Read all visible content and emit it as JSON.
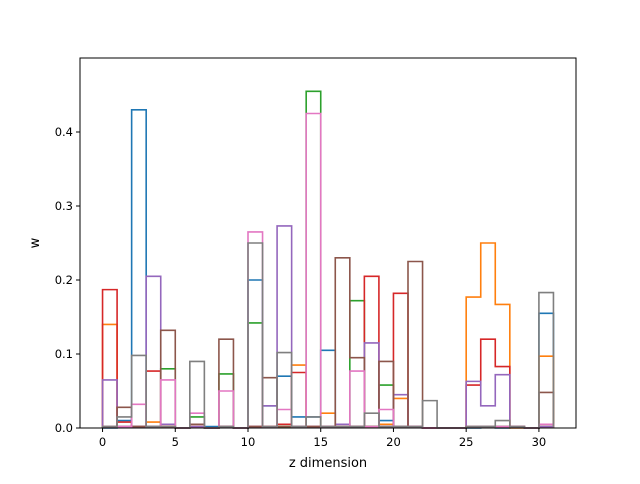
{
  "chart_data": {
    "type": "step",
    "title": "",
    "xlabel": "z dimension",
    "ylabel": "w",
    "xlim": [
      -1.55,
      32.55
    ],
    "ylim": [
      0,
      0.5
    ],
    "xticks": [
      0,
      5,
      10,
      15,
      20,
      25,
      30
    ],
    "xtick_labels": [
      "0",
      "5",
      "10",
      "15",
      "20",
      "25",
      "30"
    ],
    "yticks": [
      0.0,
      0.1,
      0.2,
      0.3,
      0.4
    ],
    "ytick_labels": [
      "0.0",
      "0.1",
      "0.2",
      "0.3",
      "0.4"
    ],
    "grid": false,
    "legend": "none",
    "bin_edges": [
      0,
      1,
      2,
      3,
      4,
      5,
      6,
      7,
      8,
      9,
      10,
      11,
      12,
      13,
      14,
      15,
      16,
      17,
      18,
      19,
      20,
      21,
      22,
      23,
      24,
      25,
      26,
      27,
      28,
      29,
      30,
      31
    ],
    "series": [
      {
        "color": "#1f77b4",
        "values": [
          0.0,
          0.01,
          0.43,
          0.002,
          0.002,
          0.0,
          0.002,
          0.002,
          0.002,
          0.0,
          0.2,
          0.03,
          0.07,
          0.015,
          0.015,
          0.105,
          0.002,
          0.002,
          0.002,
          0.01,
          0.002,
          0.002,
          0.0,
          0.0,
          0.0,
          0.0,
          0.002,
          0.0,
          0.002,
          0.0,
          0.155
        ]
      },
      {
        "color": "#ff7f0e",
        "values": [
          0.14,
          0.002,
          0.002,
          0.008,
          0.002,
          0.0,
          0.002,
          0.0,
          0.002,
          0.0,
          0.002,
          0.002,
          0.002,
          0.085,
          0.002,
          0.02,
          0.002,
          0.002,
          0.002,
          0.005,
          0.04,
          0.002,
          0.0,
          0.0,
          0.0,
          0.177,
          0.25,
          0.167,
          0.0,
          0.0,
          0.097
        ]
      },
      {
        "color": "#2ca02c",
        "values": [
          0.002,
          0.002,
          0.002,
          0.002,
          0.08,
          0.0,
          0.015,
          0.0,
          0.073,
          0.0,
          0.142,
          0.002,
          0.002,
          0.002,
          0.455,
          0.002,
          0.002,
          0.172,
          0.002,
          0.058,
          0.002,
          0.002,
          0.0,
          0.0,
          0.0,
          0.002,
          0.002,
          0.002,
          0.002,
          0.0,
          0.002
        ]
      },
      {
        "color": "#d62728",
        "values": [
          0.187,
          0.008,
          0.002,
          0.077,
          0.002,
          0.0,
          0.002,
          0.0,
          0.002,
          0.0,
          0.002,
          0.002,
          0.005,
          0.075,
          0.002,
          0.002,
          0.002,
          0.002,
          0.205,
          0.002,
          0.182,
          0.002,
          0.0,
          0.0,
          0.0,
          0.058,
          0.12,
          0.083,
          0.002,
          0.0,
          0.002
        ]
      },
      {
        "color": "#9467bd",
        "values": [
          0.065,
          0.002,
          0.002,
          0.205,
          0.005,
          0.0,
          0.002,
          0.0,
          0.002,
          0.0,
          0.002,
          0.03,
          0.273,
          0.002,
          0.002,
          0.002,
          0.005,
          0.002,
          0.115,
          0.002,
          0.045,
          0.002,
          0.0,
          0.0,
          0.0,
          0.063,
          0.03,
          0.072,
          0.002,
          0.0,
          0.002
        ]
      },
      {
        "color": "#8c564b",
        "values": [
          0.002,
          0.028,
          0.002,
          0.002,
          0.132,
          0.0,
          0.005,
          0.0,
          0.12,
          0.0,
          0.002,
          0.068,
          0.002,
          0.002,
          0.002,
          0.002,
          0.23,
          0.095,
          0.002,
          0.09,
          0.002,
          0.225,
          0.0,
          0.0,
          0.0,
          0.002,
          0.002,
          0.002,
          0.002,
          0.0,
          0.048
        ]
      },
      {
        "color": "#e377c2",
        "values": [
          0.002,
          0.002,
          0.032,
          0.002,
          0.065,
          0.0,
          0.02,
          0.0,
          0.05,
          0.0,
          0.265,
          0.002,
          0.025,
          0.002,
          0.425,
          0.002,
          0.002,
          0.077,
          0.002,
          0.025,
          0.002,
          0.002,
          0.0,
          0.0,
          0.0,
          0.002,
          0.002,
          0.002,
          0.002,
          0.0,
          0.005
        ]
      },
      {
        "color": "#7f7f7f",
        "values": [
          0.002,
          0.015,
          0.098,
          0.002,
          0.002,
          0.0,
          0.09,
          0.0,
          0.002,
          0.0,
          0.25,
          0.002,
          0.102,
          0.002,
          0.015,
          0.002,
          0.002,
          0.002,
          0.02,
          0.002,
          0.002,
          0.002,
          0.037,
          0.0,
          0.0,
          0.002,
          0.002,
          0.01,
          0.002,
          0.0,
          0.183
        ]
      }
    ]
  }
}
